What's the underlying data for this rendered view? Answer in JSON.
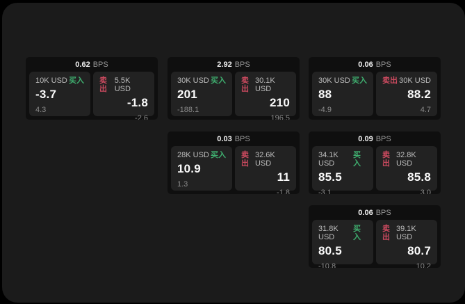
{
  "labels": {
    "bps": "BPS",
    "buy": "买入",
    "sell": "卖出"
  },
  "colors": {
    "buy": "#3fae6f",
    "sell": "#cb4a5f"
  },
  "cards": [
    {
      "bps": "0.62",
      "buy": {
        "amount": "10K USD",
        "price": "-3.7",
        "sub": "4.3"
      },
      "sell": {
        "amount": "5.5K USD",
        "price": "-1.8",
        "sub": "-2.6"
      }
    },
    {
      "bps": "2.92",
      "buy": {
        "amount": "30K USD",
        "price": "201",
        "sub": "-188.1"
      },
      "sell": {
        "amount": "30.1K USD",
        "price": "210",
        "sub": "196.5"
      }
    },
    {
      "bps": "0.06",
      "buy": {
        "amount": "30K USD",
        "price": "88",
        "sub": "-4.9"
      },
      "sell": {
        "amount": "30K USD",
        "price": "88.2",
        "sub": "4.7"
      }
    },
    {
      "bps": "0.03",
      "buy": {
        "amount": "28K USD",
        "price": "10.9",
        "sub": "1.3"
      },
      "sell": {
        "amount": "32.6K USD",
        "price": "11",
        "sub": "-1.8"
      }
    },
    {
      "bps": "0.09",
      "buy": {
        "amount": "34.1K USD",
        "price": "85.5",
        "sub": "-3.1"
      },
      "sell": {
        "amount": "32.8K USD",
        "price": "85.8",
        "sub": "3.0"
      }
    },
    {
      "bps": "0.06",
      "buy": {
        "amount": "31.8K USD",
        "price": "80.5",
        "sub": "-10.8"
      },
      "sell": {
        "amount": "39.1K USD",
        "price": "80.7",
        "sub": "10.2"
      }
    }
  ]
}
